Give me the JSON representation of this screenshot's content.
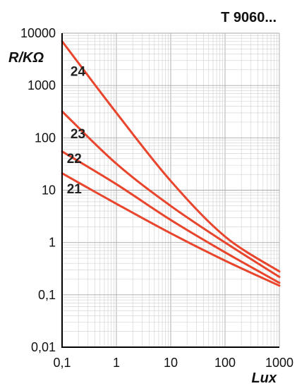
{
  "chart_data": {
    "type": "line",
    "title": "T 9060...",
    "xlabel": "Lux",
    "ylabel": "R/KΩ",
    "x_scale": "log",
    "y_scale": "log",
    "xlim": [
      0.1,
      1000
    ],
    "ylim": [
      0.01,
      10000
    ],
    "grid": true,
    "x_ticks": [
      "0,1",
      "1",
      "10",
      "100",
      "1000"
    ],
    "y_ticks": [
      "0,01",
      "0,1",
      "1",
      "10",
      "100",
      "1000",
      "10000"
    ],
    "series_color": "#e8452c",
    "series": [
      {
        "name": "24",
        "x": [
          0.1,
          1,
          10,
          100,
          1000
        ],
        "y": [
          7000,
          300,
          15,
          1.3,
          0.28
        ]
      },
      {
        "name": "23",
        "x": [
          0.1,
          1,
          10,
          100,
          1000
        ],
        "y": [
          320,
          32,
          5,
          1.0,
          0.22
        ]
      },
      {
        "name": "22",
        "x": [
          0.1,
          1,
          10,
          100,
          1000
        ],
        "y": [
          55,
          13,
          2.7,
          0.65,
          0.17
        ]
      },
      {
        "name": "21",
        "x": [
          0.1,
          1,
          10,
          100,
          1000
        ],
        "y": [
          21,
          5.5,
          1.5,
          0.45,
          0.15
        ]
      }
    ]
  }
}
